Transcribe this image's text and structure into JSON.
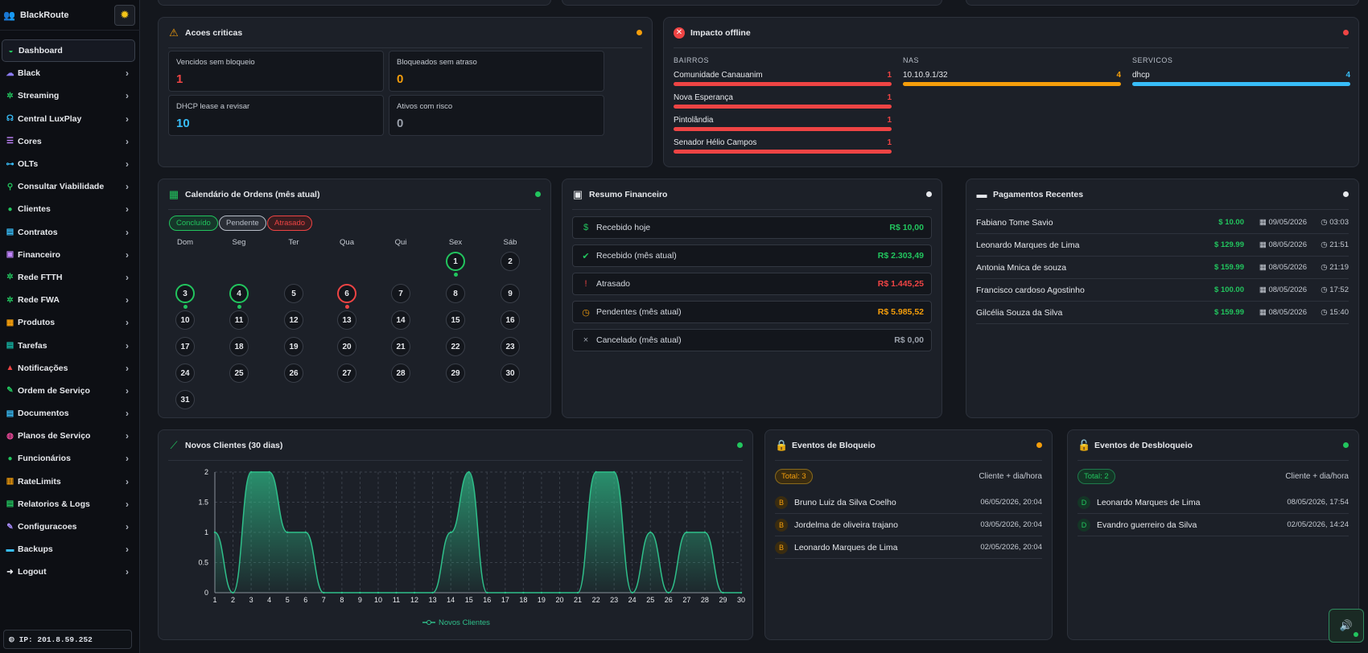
{
  "brand": {
    "name": "BlackRoute",
    "users_icon": "users-icon",
    "theme_icon": "sun-icon"
  },
  "sidebar": {
    "items": [
      {
        "label": "Dashboard",
        "icon": "dashboard-icon",
        "color": "#22c55e",
        "glyph": "◒",
        "active": true,
        "chevron": false
      },
      {
        "label": "Black",
        "icon": "cloud-icon",
        "color": "#8b7cf6",
        "glyph": "☁",
        "chevron": true
      },
      {
        "label": "Streaming",
        "icon": "antenna-icon",
        "color": "#22c55e",
        "glyph": "✲",
        "chevron": true
      },
      {
        "label": "Central LuxPlay",
        "icon": "headset-icon",
        "color": "#38bdf8",
        "glyph": "☊",
        "chevron": true
      },
      {
        "label": "Cores",
        "icon": "list-icon",
        "color": "#c084fc",
        "glyph": "☰",
        "chevron": true
      },
      {
        "label": "OLTs",
        "icon": "network-icon",
        "color": "#38bdf8",
        "glyph": "⊶",
        "chevron": true
      },
      {
        "label": "Consultar Viabilidade",
        "icon": "signal-icon",
        "color": "#22c55e",
        "glyph": "⚲",
        "chevron": true
      },
      {
        "label": "Clientes",
        "icon": "clients-icon",
        "color": "#22c55e",
        "glyph": "●",
        "chevron": true
      },
      {
        "label": "Contratos",
        "icon": "document-icon",
        "color": "#38bdf8",
        "glyph": "▤",
        "chevron": true
      },
      {
        "label": "Financeiro",
        "icon": "wallet-icon",
        "color": "#c084fc",
        "glyph": "▣",
        "chevron": true
      },
      {
        "label": "Rede FTTH",
        "icon": "antenna-icon",
        "color": "#22c55e",
        "glyph": "✲",
        "chevron": true
      },
      {
        "label": "Rede FWA",
        "icon": "wifi-icon",
        "color": "#22c55e",
        "glyph": "✲",
        "chevron": true
      },
      {
        "label": "Produtos",
        "icon": "box-icon",
        "color": "#f59e0b",
        "glyph": "▦",
        "chevron": true
      },
      {
        "label": "Tarefas",
        "icon": "tasks-icon",
        "color": "#14b8a6",
        "glyph": "▤",
        "chevron": true
      },
      {
        "label": "Notificações",
        "icon": "bell-icon",
        "color": "#ef4444",
        "glyph": "▲",
        "chevron": true
      },
      {
        "label": "Ordem de Serviço",
        "icon": "wrench-icon",
        "color": "#22c55e",
        "glyph": "✎",
        "chevron": true
      },
      {
        "label": "Documentos",
        "icon": "file-icon",
        "color": "#38bdf8",
        "glyph": "▤",
        "chevron": true
      },
      {
        "label": "Planos de Serviço",
        "icon": "plans-icon",
        "color": "#ec4899",
        "glyph": "◍",
        "chevron": true
      },
      {
        "label": "Funcionários",
        "icon": "employees-icon",
        "color": "#22c55e",
        "glyph": "●",
        "chevron": true
      },
      {
        "label": "RateLimits",
        "icon": "gauge-icon",
        "color": "#f59e0b",
        "glyph": "▥",
        "chevron": true
      },
      {
        "label": "Relatorios & Logs",
        "icon": "report-icon",
        "color": "#22c55e",
        "glyph": "▤",
        "chevron": true
      },
      {
        "label": "Configuracoes",
        "icon": "tools-icon",
        "color": "#a78bfa",
        "glyph": "✎",
        "chevron": true
      },
      {
        "label": "Backups",
        "icon": "database-icon",
        "color": "#38bdf8",
        "glyph": "▬",
        "chevron": true
      },
      {
        "label": "Logout",
        "icon": "logout-icon",
        "color": "#e6e8ec",
        "glyph": "➜",
        "chevron": true
      }
    ],
    "ip_label": "IP: 201.8.59.252"
  },
  "acoes": {
    "title": "Acoes criticas",
    "dot_color": "#f59e0b",
    "items": [
      {
        "label": "Vencidos sem bloqueio",
        "value": "1",
        "color": "#ef4444"
      },
      {
        "label": "Bloqueados sem atraso",
        "value": "0",
        "color": "#f59e0b"
      },
      {
        "label": "DHCP lease a revisar",
        "value": "10",
        "color": "#38bdf8"
      },
      {
        "label": "Ativos com risco",
        "value": "0",
        "color": "#9aa0aa"
      }
    ]
  },
  "impacto": {
    "title": "Impacto offline",
    "dot_color": "#ef4444",
    "columns": [
      {
        "title": "BAIRROS",
        "color": "#ef4444",
        "rows": [
          {
            "label": "Comunidade Canauanim",
            "value": "1",
            "fill": 1.0
          },
          {
            "label": "Nova Esperança",
            "value": "1",
            "fill": 1.0
          },
          {
            "label": "Pintolândia",
            "value": "1",
            "fill": 1.0
          },
          {
            "label": "Senador Hélio Campos",
            "value": "1",
            "fill": 1.0
          }
        ]
      },
      {
        "title": "NAS",
        "color": "#f59e0b",
        "rows": [
          {
            "label": "10.10.9.1/32",
            "value": "4",
            "fill": 1.0
          }
        ]
      },
      {
        "title": "SERVICOS",
        "color": "#38bdf8",
        "rows": [
          {
            "label": "dhcp",
            "value": "4",
            "fill": 1.0
          }
        ]
      }
    ]
  },
  "calendario": {
    "title": "Calendário de Ordens (mês atual)",
    "dot_color": "#22c55e",
    "legend": [
      {
        "label": "Concluído",
        "color": "#22c55e",
        "bg": "#16372a"
      },
      {
        "label": "Pendente",
        "color": "#b8bec8",
        "bg": "#2a2e36"
      },
      {
        "label": "Atrasado",
        "color": "#ef4444",
        "bg": "#3a1d20"
      }
    ],
    "weekdays": [
      "Dom",
      "Seg",
      "Ter",
      "Qua",
      "Qui",
      "Sex",
      "Sáb"
    ],
    "first_weekday": 5,
    "days_in_month": 31,
    "status": {
      "1": "ok",
      "3": "ok",
      "4": "ok",
      "6": "late"
    }
  },
  "financeiro": {
    "title": "Resumo Financeiro",
    "dot_color": "#e6e8ec",
    "rows": [
      {
        "label": "Recebido hoje",
        "value": "R$ 10,00",
        "color": "#22c55e",
        "icon": "dollar-icon",
        "glyph": "$"
      },
      {
        "label": "Recebido (mês atual)",
        "value": "R$ 2.303,49",
        "color": "#22c55e",
        "icon": "check-circle-icon",
        "glyph": "✔"
      },
      {
        "label": "Atrasado",
        "value": "R$ 1.445,25",
        "color": "#ef4444",
        "icon": "alert-circle-icon",
        "glyph": "!"
      },
      {
        "label": "Pendentes (mês atual)",
        "value": "R$ 5.985,52",
        "color": "#f59e0b",
        "icon": "clock-icon",
        "glyph": "◷"
      },
      {
        "label": "Cancelado (mês atual)",
        "value": "R$ 0,00",
        "color": "#9aa0aa",
        "icon": "x-circle-icon",
        "glyph": "×"
      }
    ]
  },
  "pagamentos": {
    "title": "Pagamentos Recentes",
    "dot_color": "#e6e8ec",
    "rows": [
      {
        "name": "Fabiano Tome Savio",
        "amount": "10.00",
        "date": "09/05/2026",
        "time": "03:03"
      },
      {
        "name": "Leonardo Marques de Lima",
        "amount": "129.99",
        "date": "08/05/2026",
        "time": "21:51"
      },
      {
        "name": "Antonia Mnica de souza",
        "amount": "159.99",
        "date": "08/05/2026",
        "time": "21:19"
      },
      {
        "name": "Francisco cardoso Agostinho",
        "amount": "100.00",
        "date": "08/05/2026",
        "time": "17:52"
      },
      {
        "name": "Gilcélia Souza da Silva",
        "amount": "159.99",
        "date": "08/05/2026",
        "time": "15:40"
      }
    ]
  },
  "novos": {
    "title": "Novos Clientes (30 dias)",
    "dot_color": "#22c55e"
  },
  "chart_data": {
    "type": "area",
    "x": [
      1,
      2,
      3,
      4,
      5,
      6,
      7,
      8,
      9,
      10,
      11,
      12,
      13,
      14,
      15,
      16,
      17,
      18,
      19,
      20,
      21,
      22,
      23,
      24,
      25,
      26,
      27,
      28,
      29,
      30
    ],
    "series": [
      {
        "name": "Novos Clientes",
        "values": [
          1,
          0,
          2,
          2,
          1,
          1,
          0,
          0,
          0,
          0,
          0,
          0,
          0,
          1,
          2,
          0,
          0,
          0,
          0,
          0,
          0,
          2,
          2,
          0,
          1,
          0,
          1,
          1,
          0,
          0
        ]
      }
    ],
    "ylim": [
      0,
      2
    ],
    "yticks": [
      "0",
      "0.5",
      "1",
      "1.5",
      "2"
    ],
    "grid": true,
    "legend": "bottom",
    "color": "#2fbf8a"
  },
  "bloqueio": {
    "title": "Eventos de Bloqueio",
    "dot_color": "#f59e0b",
    "total": "Total: 3",
    "subtitle": "Cliente + dia/hora",
    "rows": [
      {
        "initial": "B",
        "name": "Bruno Luiz da Silva Coelho",
        "date": "06/05/2026, 20:04"
      },
      {
        "initial": "B",
        "name": "Jordelma de oliveira trajano",
        "date": "03/05/2026, 20:04"
      },
      {
        "initial": "B",
        "name": "Leonardo Marques de Lima",
        "date": "02/05/2026, 20:04"
      }
    ]
  },
  "desbloqueio": {
    "title": "Eventos de Desbloqueio",
    "dot_color": "#22c55e",
    "total": "Total: 2",
    "subtitle": "Cliente + dia/hora",
    "rows": [
      {
        "initial": "D",
        "name": "Leonardo Marques de Lima",
        "date": "08/05/2026, 17:54"
      },
      {
        "initial": "D",
        "name": "Evandro guerreiro da Silva",
        "date": "02/05/2026, 14:24"
      }
    ]
  },
  "sound_icon": "speaker-icon"
}
